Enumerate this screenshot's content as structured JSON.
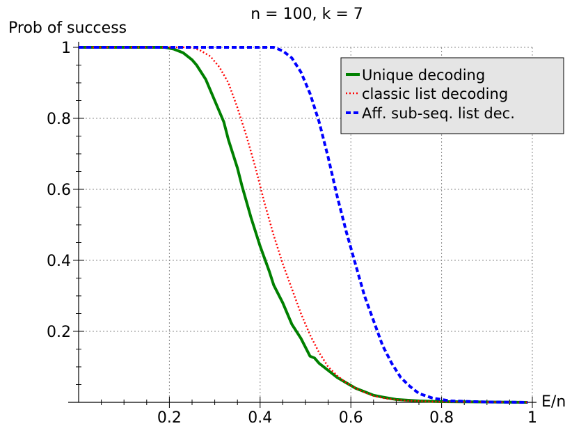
{
  "chart_data": {
    "type": "line",
    "title": "n = 100, k = 7",
    "xlabel": "E/n",
    "ylabel": "Prob of success",
    "xlim": [
      0,
      1
    ],
    "ylim": [
      0,
      1
    ],
    "grid": true,
    "legend_position": "top-right",
    "x_ticks": [
      0.2,
      0.4,
      0.6,
      0.8,
      1
    ],
    "x_tick_labels": [
      "0.2",
      "0.4",
      "0.6",
      "0.8",
      "1"
    ],
    "y_ticks": [
      0.2,
      0.4,
      0.6,
      0.8,
      1
    ],
    "y_tick_labels": [
      "0.2",
      "0.4",
      "0.6",
      "0.8",
      "1"
    ],
    "series": [
      {
        "name": "Unique decoding",
        "color": "#008000",
        "style": "solid",
        "x": [
          0,
          0.19,
          0.21,
          0.23,
          0.25,
          0.26,
          0.28,
          0.3,
          0.32,
          0.33,
          0.35,
          0.36,
          0.38,
          0.4,
          0.42,
          0.43,
          0.45,
          0.47,
          0.49,
          0.51,
          0.52,
          0.53,
          0.55,
          0.57,
          0.59,
          0.61,
          0.63,
          0.65,
          0.67,
          0.7,
          0.75,
          0.8,
          0.9,
          0.99
        ],
        "y": [
          1.0,
          1.0,
          0.995,
          0.985,
          0.965,
          0.95,
          0.91,
          0.85,
          0.79,
          0.74,
          0.66,
          0.61,
          0.52,
          0.44,
          0.37,
          0.33,
          0.28,
          0.22,
          0.18,
          0.13,
          0.125,
          0.11,
          0.09,
          0.07,
          0.055,
          0.04,
          0.03,
          0.02,
          0.015,
          0.008,
          0.004,
          0.002,
          0.001,
          0.0
        ]
      },
      {
        "name": "classic list decoding",
        "color": "#ff0000",
        "style": "dotted",
        "x": [
          0,
          0.25,
          0.27,
          0.29,
          0.31,
          0.33,
          0.35,
          0.37,
          0.39,
          0.41,
          0.43,
          0.45,
          0.47,
          0.49,
          0.51,
          0.53,
          0.55,
          0.57,
          0.59,
          0.61,
          0.63,
          0.65,
          0.68,
          0.72,
          0.78,
          0.85,
          0.99
        ],
        "y": [
          1.0,
          1.0,
          0.99,
          0.975,
          0.945,
          0.9,
          0.83,
          0.75,
          0.66,
          0.56,
          0.47,
          0.39,
          0.32,
          0.25,
          0.19,
          0.14,
          0.1,
          0.075,
          0.055,
          0.04,
          0.028,
          0.018,
          0.01,
          0.005,
          0.002,
          0.001,
          0.0
        ]
      },
      {
        "name": "Aff. sub-seq. list dec.",
        "color": "#0000ff",
        "style": "dashed",
        "x": [
          0,
          0.43,
          0.45,
          0.47,
          0.49,
          0.51,
          0.53,
          0.55,
          0.57,
          0.59,
          0.61,
          0.63,
          0.65,
          0.67,
          0.69,
          0.71,
          0.73,
          0.75,
          0.78,
          0.82,
          0.9,
          0.99
        ],
        "y": [
          1.0,
          1.0,
          0.99,
          0.97,
          0.93,
          0.87,
          0.79,
          0.69,
          0.58,
          0.48,
          0.39,
          0.3,
          0.23,
          0.16,
          0.11,
          0.07,
          0.045,
          0.025,
          0.012,
          0.004,
          0.001,
          0.0
        ]
      }
    ]
  }
}
